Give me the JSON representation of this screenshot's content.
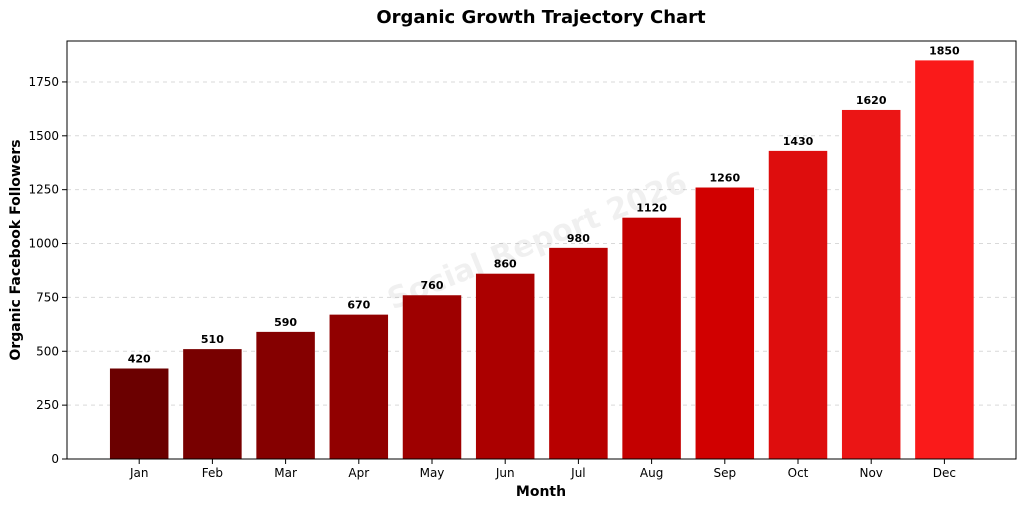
{
  "chart_data": {
    "type": "bar",
    "title": "Organic Growth Trajectory Chart",
    "xlabel": "Month",
    "ylabel": "Organic Facebook Followers",
    "categories": [
      "Jan",
      "Feb",
      "Mar",
      "Apr",
      "May",
      "Jun",
      "Jul",
      "Aug",
      "Sep",
      "Oct",
      "Nov",
      "Dec"
    ],
    "values": [
      420,
      510,
      590,
      670,
      760,
      860,
      980,
      1120,
      1260,
      1430,
      1620,
      1850
    ],
    "value_labels": [
      "420",
      "510",
      "590",
      "670",
      "760",
      "860",
      "980",
      "1120",
      "1260",
      "1430",
      "1620",
      "1850"
    ],
    "ylim": [
      0,
      1940
    ],
    "yticks": [
      0,
      250,
      500,
      750,
      1000,
      1250,
      1500,
      1750
    ],
    "ytick_labels": [
      "0",
      "250",
      "500",
      "750",
      "1000",
      "1250",
      "1500",
      "1750"
    ],
    "grid": "y-dashed",
    "legend": "none",
    "bar_colors": [
      "#6b0000",
      "#780000",
      "#850000",
      "#910000",
      "#9e0000",
      "#ab0000",
      "#b80000",
      "#c40000",
      "#d10000",
      "#de0d0d",
      "#eb1515",
      "#fa1a1a"
    ],
    "watermark": "Social Report 2026"
  }
}
